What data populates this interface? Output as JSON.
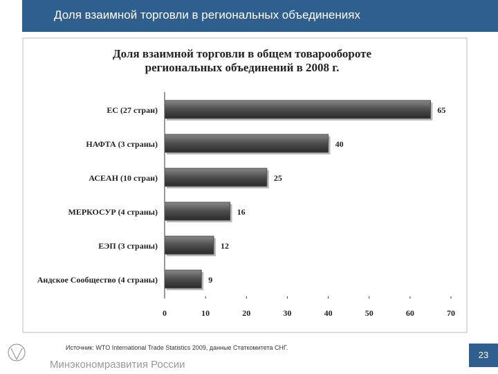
{
  "header_title": "Доля взаимной торговли в региональных объединениях",
  "source": "Источник: WTO International Trade Statistics 2009, данные Статкомитета СНГ.",
  "footer": "Минэкономразвития России",
  "page_number": "23",
  "chart_data": {
    "type": "bar",
    "orientation": "horizontal",
    "title": "Доля взаимной торговли в общем товарообороте региональных объединений в 2008 г.",
    "categories": [
      "ЕС (27 стран)",
      "НАФТА (3 страны)",
      "АСЕАН (10 стран)",
      "МЕРКОСУР (4 страны)",
      "ЕЭП (3 страны)",
      "Андское Сообщество (4 страны)"
    ],
    "values": [
      65,
      40,
      25,
      16,
      12,
      9
    ],
    "color": "#4d4d4d",
    "xlim": [
      0,
      70
    ],
    "xticks": [
      0,
      10,
      20,
      30,
      40,
      50,
      60,
      70
    ],
    "grid": false
  }
}
